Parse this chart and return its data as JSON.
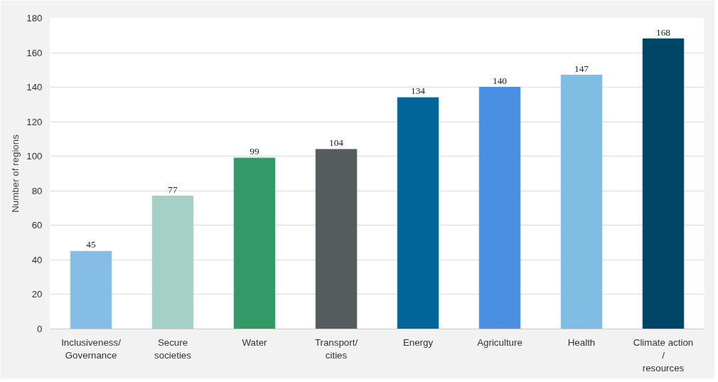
{
  "chart_data": {
    "type": "bar",
    "ylabel": "Number of regions",
    "categories": [
      "Inclusiveness/\nGovernance",
      "Secure\nsocieties",
      "Water",
      "Transport/\ncities",
      "Energy",
      "Agriculture",
      "Health",
      "Climate action\n/\nresources"
    ],
    "values": [
      45,
      77,
      99,
      104,
      134,
      140,
      147,
      168
    ],
    "colors": [
      "#85bde6",
      "#a6cfc6",
      "#339966",
      "#555c5e",
      "#006699",
      "#4a90e2",
      "#80bde3",
      "#004466"
    ],
    "ylim": [
      0,
      180
    ],
    "yticks": [
      0,
      20,
      40,
      60,
      80,
      100,
      120,
      140,
      160,
      180
    ],
    "grid": "y",
    "data_labels": true
  }
}
